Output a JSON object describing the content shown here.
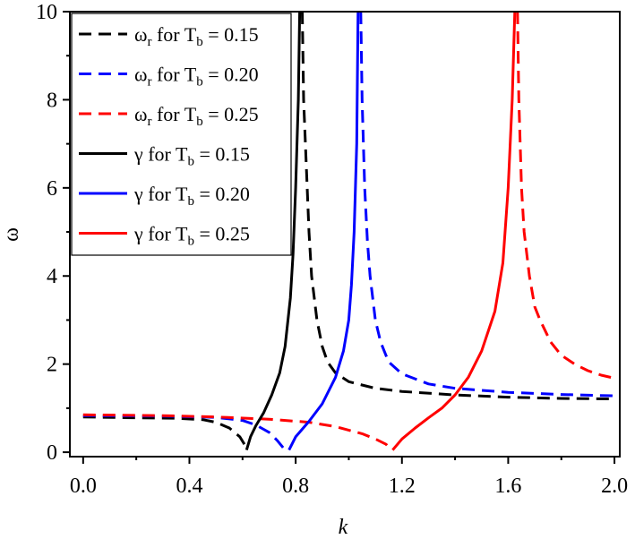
{
  "chart_data": {
    "type": "line",
    "xlabel": "k",
    "ylabel": "ω",
    "xlim": [
      -0.05,
      2.02
    ],
    "ylim": [
      -0.1,
      10
    ],
    "x_ticks": [
      0.0,
      0.4,
      0.8,
      1.2,
      1.6,
      2.0
    ],
    "x_tick_labels": [
      "0.0",
      "0.4",
      "0.8",
      "1.2",
      "1.6",
      "2.0"
    ],
    "y_ticks": [
      0,
      2,
      4,
      6,
      8,
      10
    ],
    "y_tick_labels": [
      "0",
      "2",
      "4",
      "6",
      "8",
      "10"
    ],
    "grid": false,
    "legend_position": "top-left",
    "series": [
      {
        "name": "ωr for Tb = 0.15",
        "legend": {
          "sym": "ω",
          "sub1": "r",
          "mid": " for T",
          "sub2": "b",
          "tail": " = 0.15"
        },
        "color": "#000000",
        "dash": true,
        "points": [
          [
            [
              0.0,
              0.8
            ],
            [
              0.2,
              0.78
            ],
            [
              0.35,
              0.77
            ],
            [
              0.45,
              0.74
            ],
            [
              0.5,
              0.68
            ],
            [
              0.55,
              0.55
            ],
            [
              0.59,
              0.35
            ],
            [
              0.61,
              0.15
            ]
          ],
          [
            [
              0.825,
              10.0
            ],
            [
              0.83,
              8.0
            ],
            [
              0.84,
              6.5
            ],
            [
              0.85,
              5.0
            ],
            [
              0.86,
              4.0
            ],
            [
              0.88,
              3.0
            ],
            [
              0.9,
              2.4
            ],
            [
              0.92,
              2.05
            ],
            [
              0.95,
              1.8
            ],
            [
              1.0,
              1.6
            ],
            [
              1.1,
              1.45
            ],
            [
              1.2,
              1.38
            ],
            [
              1.4,
              1.3
            ],
            [
              1.6,
              1.25
            ],
            [
              1.8,
              1.22
            ],
            [
              2.0,
              1.21
            ]
          ]
        ]
      },
      {
        "name": "ωr for Tb = 0.20",
        "legend": {
          "sym": "ω",
          "sub1": "r",
          "mid": " for T",
          "sub2": "b",
          "tail": " = 0.20"
        },
        "color": "#0000ff",
        "dash": true,
        "points": [
          [
            [
              0.0,
              0.83
            ],
            [
              0.3,
              0.82
            ],
            [
              0.5,
              0.79
            ],
            [
              0.6,
              0.72
            ],
            [
              0.65,
              0.62
            ],
            [
              0.7,
              0.45
            ],
            [
              0.73,
              0.27
            ],
            [
              0.76,
              0.05
            ]
          ],
          [
            [
              1.045,
              10.0
            ],
            [
              1.05,
              8.0
            ],
            [
              1.06,
              6.0
            ],
            [
              1.07,
              4.8
            ],
            [
              1.08,
              4.0
            ],
            [
              1.1,
              3.0
            ],
            [
              1.12,
              2.5
            ],
            [
              1.15,
              2.05
            ],
            [
              1.2,
              1.78
            ],
            [
              1.3,
              1.55
            ],
            [
              1.4,
              1.45
            ],
            [
              1.6,
              1.36
            ],
            [
              1.8,
              1.31
            ],
            [
              2.0,
              1.28
            ]
          ]
        ]
      },
      {
        "name": "ωr for Tb = 0.25",
        "legend": {
          "sym": "ω",
          "sub1": "r",
          "mid": " for T",
          "sub2": "b",
          "tail": " = 0.25"
        },
        "color": "#ff0000",
        "dash": true,
        "points": [
          [
            [
              0.0,
              0.85
            ],
            [
              0.3,
              0.83
            ],
            [
              0.5,
              0.8
            ],
            [
              0.7,
              0.75
            ],
            [
              0.85,
              0.68
            ],
            [
              0.95,
              0.58
            ],
            [
              1.05,
              0.42
            ],
            [
              1.1,
              0.3
            ],
            [
              1.14,
              0.18
            ],
            [
              1.16,
              0.05
            ]
          ],
          [
            [
              1.635,
              10.0
            ],
            [
              1.64,
              8.0
            ],
            [
              1.65,
              6.0
            ],
            [
              1.66,
              5.0
            ],
            [
              1.68,
              4.0
            ],
            [
              1.7,
              3.3
            ],
            [
              1.72,
              3.0
            ],
            [
              1.76,
              2.5
            ],
            [
              1.8,
              2.2
            ],
            [
              1.85,
              2.0
            ],
            [
              1.9,
              1.85
            ],
            [
              1.95,
              1.75
            ],
            [
              2.0,
              1.68
            ]
          ]
        ]
      },
      {
        "name": "γ for Tb = 0.15",
        "legend": {
          "sym": "γ",
          "sub1": "",
          "mid": " for T",
          "sub2": "b",
          "tail": " = 0.15"
        },
        "color": "#000000",
        "dash": false,
        "points": [
          [
            [
              0.615,
              0.05
            ],
            [
              0.63,
              0.35
            ],
            [
              0.65,
              0.6
            ],
            [
              0.68,
              0.9
            ],
            [
              0.71,
              1.3
            ],
            [
              0.74,
              1.8
            ],
            [
              0.76,
              2.4
            ],
            [
              0.78,
              3.5
            ],
            [
              0.79,
              4.5
            ],
            [
              0.8,
              6.0
            ],
            [
              0.81,
              8.0
            ],
            [
              0.815,
              10.0
            ]
          ]
        ]
      },
      {
        "name": "γ for Tb = 0.20",
        "legend": {
          "sym": "γ",
          "sub1": "",
          "mid": " for T",
          "sub2": "b",
          "tail": " = 0.20"
        },
        "color": "#0000ff",
        "dash": false,
        "points": [
          [
            [
              0.775,
              0.05
            ],
            [
              0.8,
              0.35
            ],
            [
              0.85,
              0.7
            ],
            [
              0.9,
              1.1
            ],
            [
              0.95,
              1.7
            ],
            [
              0.98,
              2.3
            ],
            [
              1.0,
              3.0
            ],
            [
              1.01,
              3.8
            ],
            [
              1.02,
              5.0
            ],
            [
              1.03,
              7.0
            ],
            [
              1.035,
              10.0
            ]
          ]
        ]
      },
      {
        "name": "γ for Tb = 0.25",
        "legend": {
          "sym": "γ",
          "sub1": "",
          "mid": " for T",
          "sub2": "b",
          "tail": " = 0.25"
        },
        "color": "#ff0000",
        "dash": false,
        "points": [
          [
            [
              1.165,
              0.05
            ],
            [
              1.2,
              0.3
            ],
            [
              1.25,
              0.55
            ],
            [
              1.3,
              0.78
            ],
            [
              1.35,
              1.0
            ],
            [
              1.4,
              1.3
            ],
            [
              1.45,
              1.7
            ],
            [
              1.5,
              2.3
            ],
            [
              1.55,
              3.2
            ],
            [
              1.58,
              4.3
            ],
            [
              1.6,
              6.0
            ],
            [
              1.615,
              8.0
            ],
            [
              1.625,
              10.0
            ]
          ]
        ]
      }
    ]
  }
}
